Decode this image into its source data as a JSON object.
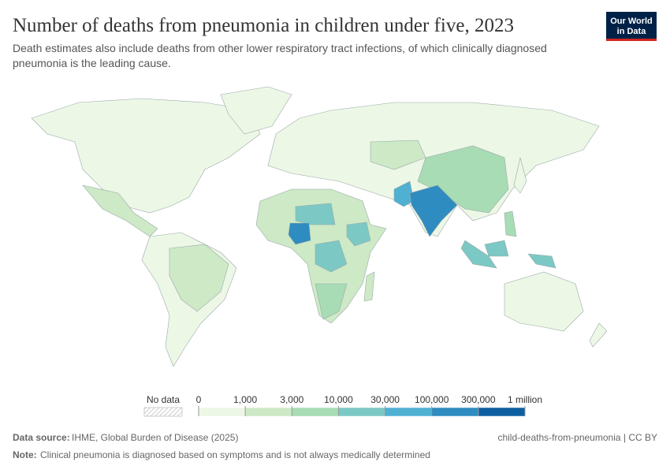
{
  "header": {
    "title": "Number of deaths from pneumonia in children under five, 2023",
    "subtitle_lines": [
      "Death estimates also include deaths from other lower respiratory tract infections, of which clinically diagnosed",
      "pneumonia is the leading cause."
    ]
  },
  "logo": {
    "line1": "Our World",
    "line2": "in Data"
  },
  "legend": {
    "no_data": "No data",
    "ticks": [
      0,
      {
        "value": 1000,
        "label": "1,000"
      },
      {
        "value": 3000,
        "label": "3,000"
      },
      {
        "value": 10000,
        "label": "10,000"
      },
      {
        "value": 30000,
        "label": "30,000"
      },
      {
        "value": 100000,
        "label": "100,000"
      },
      {
        "value": 300000,
        "label": "300,000"
      },
      {
        "value": 1000000,
        "label": "1 million"
      }
    ],
    "colors": [
      "#edf7e6",
      "#cde9c6",
      "#a8dcb4",
      "#7cc8c4",
      "#4fb0d2",
      "#2e8cc0",
      "#0e5fa0"
    ]
  },
  "footer": {
    "source_label": "Data source:",
    "source": "IHME, Global Burden of Disease (2025)",
    "slug": "child-deaths-from-pneumonia | CC BY",
    "note_label": "Note:",
    "note": "Clinical pneumonia is diagnosed based on symptoms and is not always medically determined"
  }
}
